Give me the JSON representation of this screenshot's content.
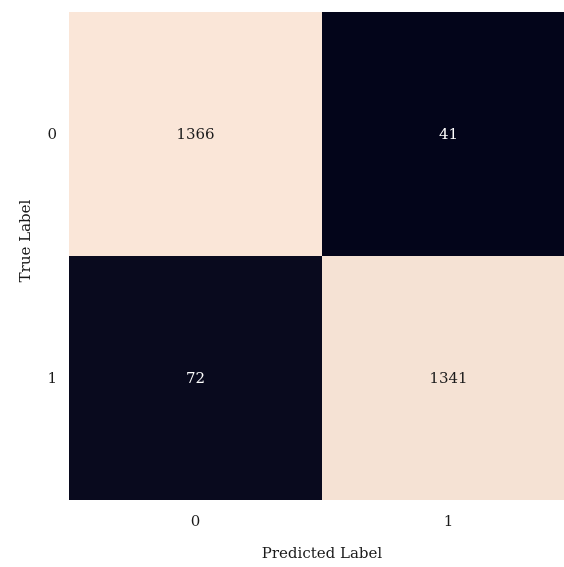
{
  "chart_data": {
    "type": "heatmap",
    "title": "",
    "xlabel": "Predicted Label",
    "ylabel": "True Label",
    "x_categories": [
      "0",
      "1"
    ],
    "y_categories": [
      "0",
      "1"
    ],
    "values": [
      [
        1366,
        41
      ],
      [
        72,
        1341
      ]
    ],
    "colormap": {
      "low": "#03051a",
      "high": "#fae6d8"
    },
    "colorbar": false
  }
}
